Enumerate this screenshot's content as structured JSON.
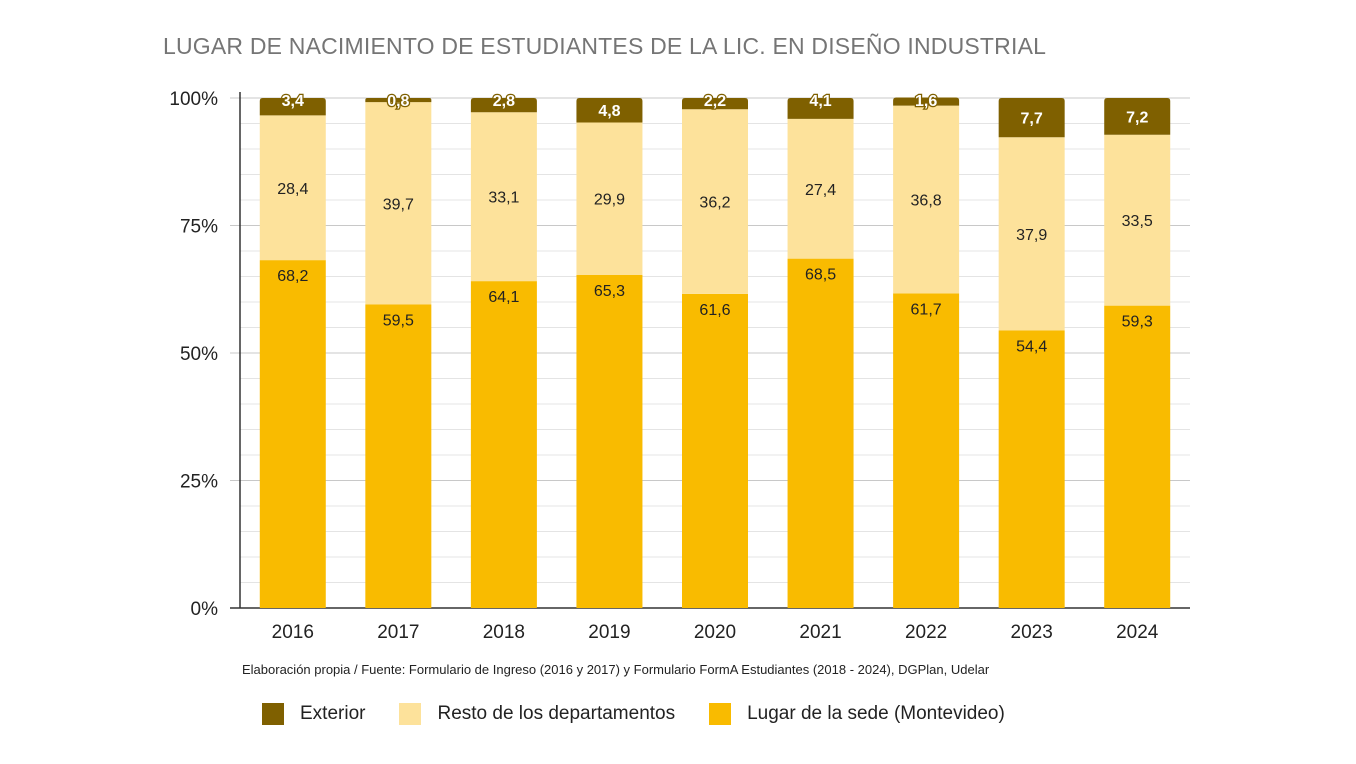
{
  "title": "LUGAR DE NACIMIENTO DE ESTUDIANTES DE LA LIC. EN DISEÑO INDUSTRIAL",
  "source": "Elaboración propia / Fuente: Formulario de Ingreso (2016 y 2017) y Formulario FormA Estudiantes (2018 - 2024), DGPlan, Udelar",
  "chart_data": {
    "type": "bar",
    "stacked": true,
    "title": "LUGAR DE NACIMIENTO DE ESTUDIANTES DE LA LIC. EN DISEÑO INDUSTRIAL",
    "xlabel": "",
    "ylabel": "",
    "ylim": [
      0,
      100
    ],
    "yticks": [
      "0%",
      "25%",
      "50%",
      "75%",
      "100%"
    ],
    "grid": true,
    "legend_position": "bottom",
    "categories": [
      "2016",
      "2017",
      "2018",
      "2019",
      "2020",
      "2021",
      "2022",
      "2023",
      "2024"
    ],
    "series": [
      {
        "name": "Lugar de la sede (Montevideo)",
        "color": "#F9BB00",
        "values": [
          68.2,
          59.5,
          64.1,
          65.3,
          61.6,
          68.5,
          61.7,
          54.4,
          59.3
        ],
        "labels": [
          "68,2",
          "59,5",
          "64,1",
          "65,3",
          "61,6",
          "68,5",
          "61,7",
          "54,4",
          "59,3"
        ]
      },
      {
        "name": "Resto de los departamentos",
        "color": "#FDE29B",
        "values": [
          28.4,
          39.7,
          33.1,
          29.9,
          36.2,
          27.4,
          36.8,
          37.9,
          33.5
        ],
        "labels": [
          "28,4",
          "39,7",
          "33,1",
          "29,9",
          "36,2",
          "27,4",
          "36,8",
          "37,9",
          "33,5"
        ]
      },
      {
        "name": "Exterior",
        "color": "#7F6000",
        "values": [
          3.4,
          0.8,
          2.8,
          4.8,
          2.2,
          4.1,
          1.6,
          7.7,
          7.2
        ],
        "labels": [
          "3,4",
          "0,8",
          "2,8",
          "4,8",
          "2,2",
          "4,1",
          "1,6",
          "7,7",
          "7,2"
        ]
      }
    ],
    "legend": [
      {
        "name": "Exterior",
        "color": "#7F6000"
      },
      {
        "name": "Resto de los departamentos",
        "color": "#FDE29B"
      },
      {
        "name": "Lugar de la sede (Montevideo)",
        "color": "#F9BB00"
      }
    ]
  }
}
